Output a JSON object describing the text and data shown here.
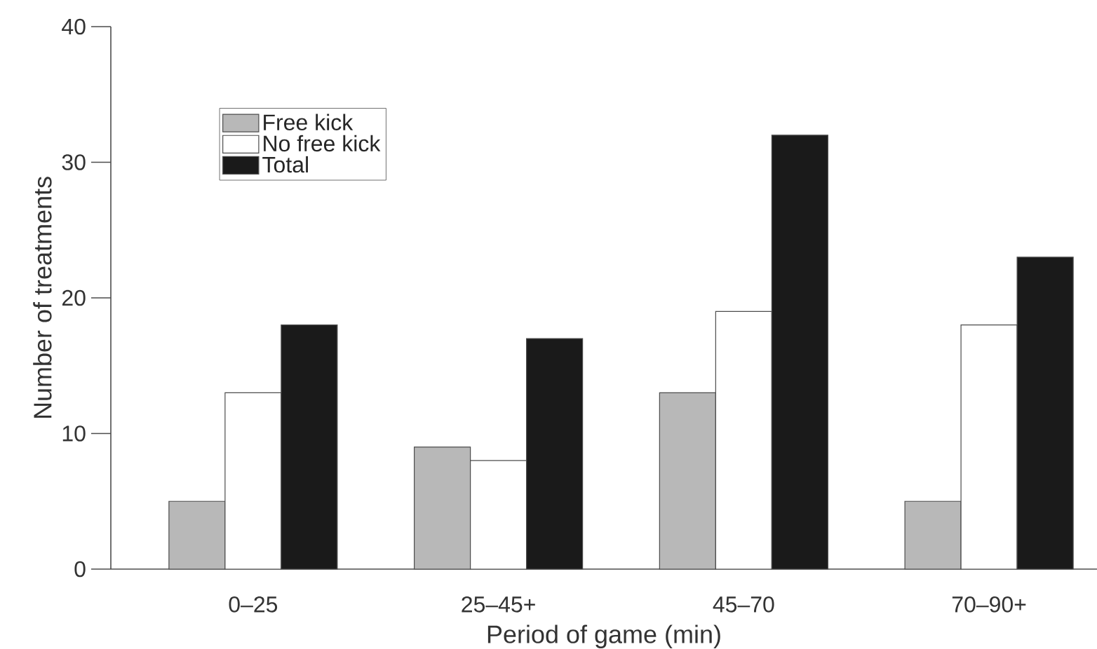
{
  "chart_data": {
    "type": "bar",
    "xlabel": "Period of game (min)",
    "ylabel": "Number of treatments",
    "categories": [
      "0–25",
      "25–45+",
      "45–70",
      "70–90+"
    ],
    "series": [
      {
        "name": "Free kick",
        "color": "#b8b8b8",
        "values": [
          5,
          9,
          13,
          5
        ]
      },
      {
        "name": "No free kick",
        "color": "#ffffff",
        "values": [
          13,
          8,
          19,
          18
        ]
      },
      {
        "name": "Total",
        "color": "#1a1a1a",
        "values": [
          18,
          17,
          32,
          23
        ]
      }
    ],
    "ylim": [
      0,
      40
    ],
    "yticks": [
      0,
      10,
      20,
      30,
      40
    ],
    "legend": "top left"
  }
}
